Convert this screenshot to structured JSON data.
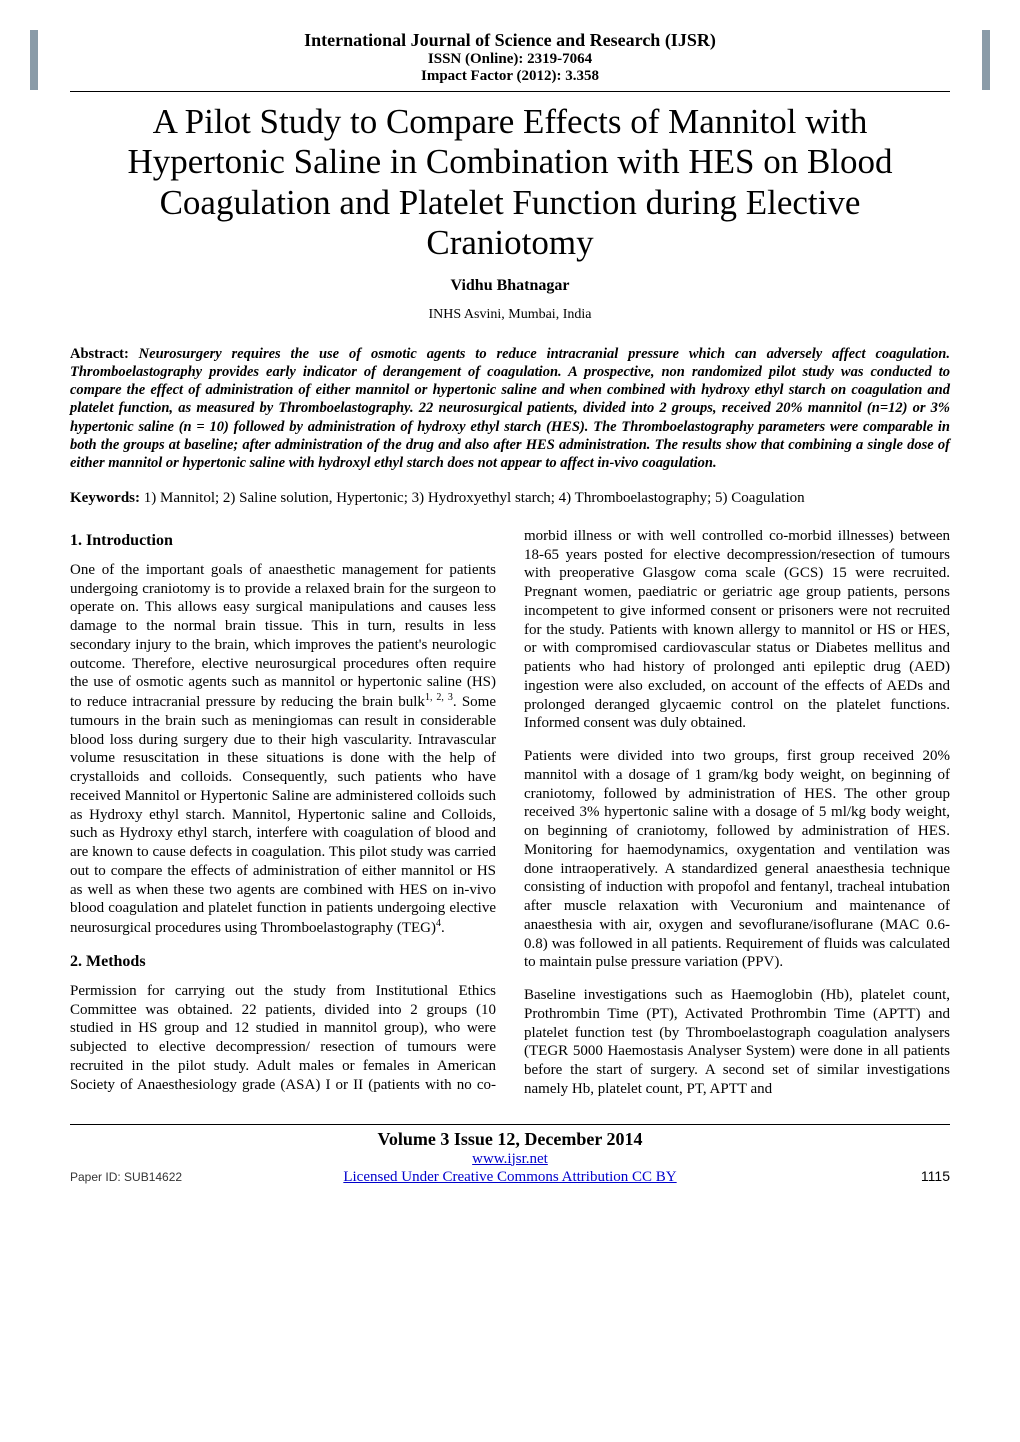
{
  "header": {
    "journal_title": "International Journal of Science and Research (IJSR)",
    "issn": "ISSN (Online): 2319-7064",
    "impact_factor": "Impact Factor (2012): 3.358"
  },
  "paper": {
    "title": "A Pilot Study to Compare Effects of Mannitol with Hypertonic Saline in Combination with HES on Blood Coagulation and Platelet Function during Elective Craniotomy",
    "authors": "Vidhu Bhatnagar",
    "affiliation": "INHS Asvini, Mumbai, India"
  },
  "abstract": {
    "label": "Abstract: ",
    "body": "Neurosurgery requires the use of osmotic agents to reduce intracranial pressure which can adversely affect coagulation. Thromboelastography provides early indicator of derangement of coagulation. A prospective, non randomized pilot study was conducted to compare the effect of administration of either mannitol or hypertonic saline and when combined with hydroxy ethyl starch on coagulation and platelet function, as measured by Thromboelastography. 22 neurosurgical patients, divided into 2 groups, received 20% mannitol (n=12) or 3% hypertonic saline (n = 10) followed by administration of hydroxy ethyl starch (HES). The Thromboelastography parameters were comparable in both the groups at baseline; after administration of the drug and also after HES administration. The results show that combining a single dose of either mannitol or hypertonic saline with hydroxyl ethyl starch does not appear to affect in-vivo coagulation."
  },
  "keywords": {
    "label": "Keywords: ",
    "text": "1) Mannitol; 2) Saline solution, Hypertonic; 3) Hydroxyethyl starch; 4) Thromboelastography; 5) Coagulation"
  },
  "sections": {
    "s1": {
      "heading": "1. Introduction",
      "p1a": "One of the important goals of anaesthetic management for patients undergoing craniotomy is to provide a relaxed brain for the surgeon to operate on. This allows easy surgical manipulations and causes less damage to the normal brain tissue. This in turn, results in less secondary injury to the brain, which improves the patient's neurologic outcome. Therefore, elective neurosurgical procedures often require the use of osmotic agents such as mannitol or hypertonic saline (HS) to reduce intracranial pressure by reducing the brain bulk",
      "p1_ref1": "1, 2, 3",
      "p1b": ". Some tumours in the brain such as meningiomas can result in considerable blood loss during surgery due to their high vascularity. Intravascular volume resuscitation in these situations is done with the help of crystalloids and colloids. Consequently, such patients who have received Mannitol or Hypertonic Saline are administered colloids such as Hydroxy ethyl starch. Mannitol, Hypertonic saline and Colloids, such as Hydroxy ethyl starch, interfere with coagulation of blood and are known to cause defects in coagulation. This pilot study was carried out to compare the effects of administration of either mannitol or HS as well as when these two agents are combined with HES on in-vivo blood coagulation and platelet function in patients undergoing elective neurosurgical procedures using Thromboelastography (TEG)",
      "p1_ref2": "4",
      "p1c": "."
    },
    "s2": {
      "heading": "2. Methods",
      "p1": "Permission for carrying out the study from Institutional Ethics Committee was obtained. 22 patients, divided into 2 groups (10 studied in HS group and 12 studied in mannitol group), who were subjected to elective decompression/ resection of tumours were recruited in the pilot study. Adult males or females in American Society of Anaesthesiology grade (ASA) I or II (patients with no co-morbid illness or with well controlled co-morbid illnesses) between 18-65 years posted for elective decompression/resection of tumours with preoperative Glasgow coma scale (GCS) 15 were recruited. Pregnant women, paediatric or geriatric age group patients, persons incompetent to give informed consent or prisoners were not recruited for the study. Patients with known allergy to mannitol or HS or HES, or with compromised cardiovascular status or Diabetes mellitus and patients who had history of prolonged anti epileptic drug (AED) ingestion were also excluded, on account of the effects of AEDs and prolonged deranged glycaemic control on the platelet functions. Informed consent was duly obtained.",
      "p2": "Patients were divided into two groups, first group received 20% mannitol with a dosage of 1 gram/kg body weight, on beginning of craniotomy, followed by administration of HES. The other group received 3% hypertonic saline with a dosage of 5 ml/kg body weight, on beginning of craniotomy, followed by administration of HES. Monitoring for haemodynamics, oxygentation and ventilation was done intraoperatively. A standardized general anaesthesia technique consisting of induction with propofol and fentanyl, tracheal intubation after muscle relaxation with Vecuronium and maintenance of anaesthesia with air, oxygen and sevoflurane/isoflurane (MAC 0.6-0.8) was followed in all patients. Requirement of fluids was calculated to maintain pulse pressure variation (PPV).",
      "p3": " Baseline investigations such as Haemoglobin (Hb), platelet count, Prothrombin Time (PT), Activated Prothrombin Time (APTT) and platelet function test (by Thromboelastograph coagulation analysers (TEGR 5000 Haemostasis Analyser System) were done in all patients before the start of surgery. A second set of similar investigations namely Hb, platelet count, PT, APTT and"
    }
  },
  "footer": {
    "volume": "Volume 3 Issue 12, December 2014",
    "url": "www.ijsr.net",
    "license": "Licensed Under Creative Commons Attribution CC BY",
    "paper_id": "Paper ID: SUB14622",
    "page_number": "1115"
  }
}
